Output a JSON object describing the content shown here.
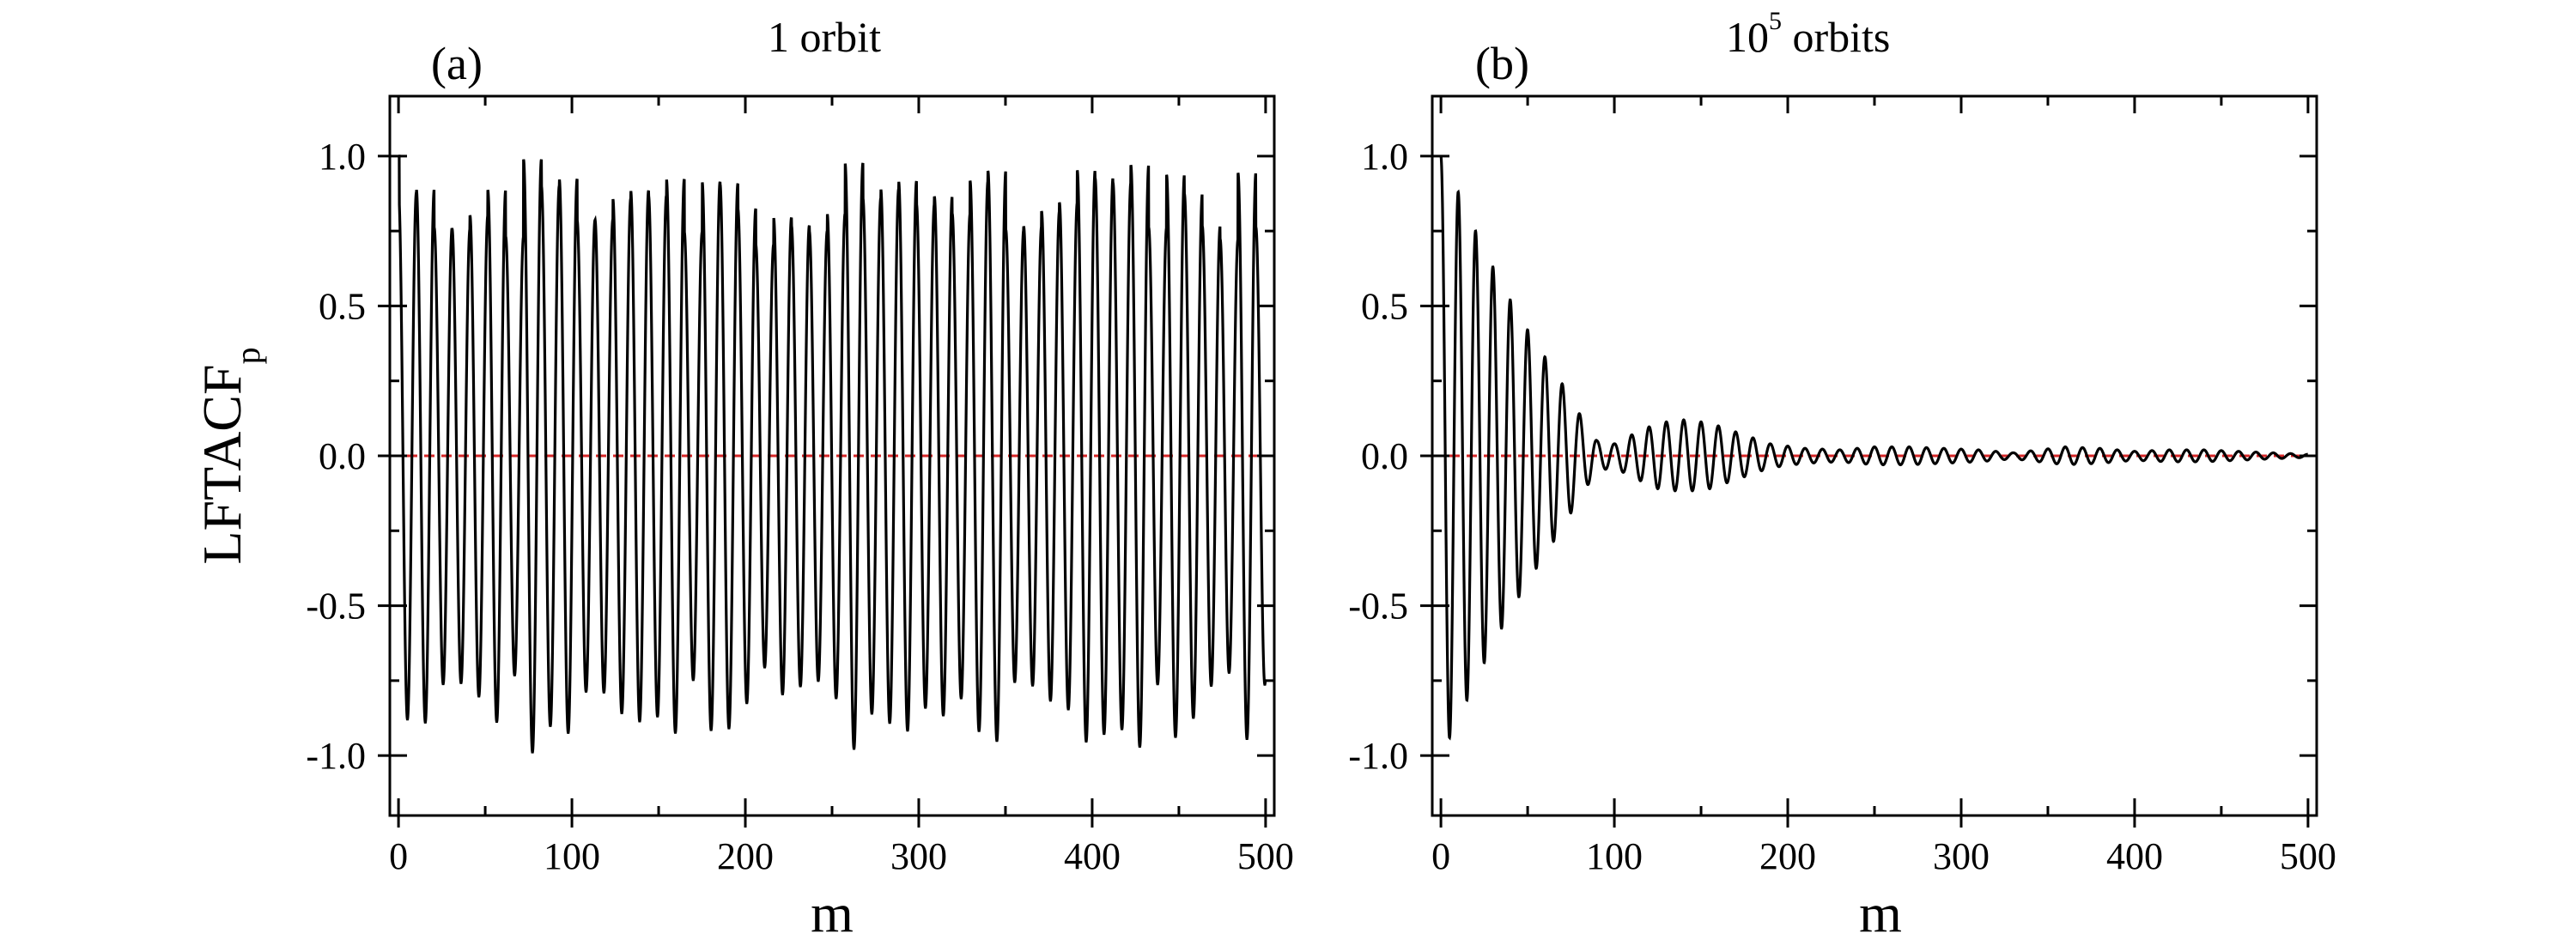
{
  "chart_data": [
    {
      "type": "line",
      "panel_label": "(a)",
      "title": "1 orbit",
      "xlabel": "m",
      "ylabel_main": "LFTACF",
      "ylabel_sub": "p",
      "xlim": [
        -5,
        505
      ],
      "ylim": [
        -1.2,
        1.2
      ],
      "xticks": [
        0,
        100,
        200,
        300,
        400,
        500
      ],
      "yticks": [
        -1.0,
        -0.5,
        0.0,
        0.5,
        1.0
      ],
      "xtick_labels": [
        "0",
        "100",
        "200",
        "300",
        "400",
        "500"
      ],
      "ytick_labels": [
        "-1.0",
        "-0.5",
        "0.0",
        "0.5",
        "1.0"
      ],
      "grid": false,
      "reference_line": {
        "y": 0.0,
        "color": "#d62728",
        "style": "dashed"
      },
      "series": [
        {
          "color": "#000000",
          "model": "non-decaying oscillation, period ~10.3 (about 49 cycles over m = 0-500), peak amplitude ~0.7-1.0",
          "period": 10.3,
          "x_range": [
            0,
            500
          ],
          "peaks_sample": [
            [
              0,
              1.0
            ],
            [
              10,
              0.75
            ],
            [
              21,
              0.86
            ],
            [
              31,
              0.9
            ],
            [
              41,
              0.97
            ],
            [
              52,
              0.7
            ],
            [
              62,
              0.95
            ],
            [
              72,
              0.83
            ],
            [
              124,
              0.99
            ],
            [
              175,
              0.98
            ],
            [
              226,
              0.98
            ],
            [
              278,
              0.99
            ],
            [
              329,
              0.99
            ],
            [
              381,
              0.99
            ],
            [
              432,
              0.99
            ],
            [
              483,
              0.95
            ],
            [
              496,
              0.7
            ]
          ],
          "troughs_sample": [
            [
              5,
              -0.87
            ],
            [
              15,
              -0.73
            ],
            [
              26,
              -0.98
            ],
            [
              36,
              -0.72
            ],
            [
              67,
              -0.96
            ],
            [
              155,
              -0.98
            ],
            [
              259,
              -0.99
            ],
            [
              365,
              -0.98
            ],
            [
              470,
              -0.96
            ],
            [
              490,
              -0.8
            ]
          ]
        }
      ]
    },
    {
      "type": "line",
      "panel_label": "(b)",
      "title_base": "10",
      "title_exp": "5",
      "title_rest": " orbits",
      "xlabel": "m",
      "xlim": [
        -5,
        505
      ],
      "ylim": [
        -1.2,
        1.2
      ],
      "xticks": [
        0,
        100,
        200,
        300,
        400,
        500
      ],
      "yticks": [
        -1.0,
        -0.5,
        0.0,
        0.5,
        1.0
      ],
      "xtick_labels": [
        "0",
        "100",
        "200",
        "300",
        "400",
        "500"
      ],
      "ytick_labels": [
        "-1.0",
        "-0.5",
        "0.0",
        "0.5",
        "1.0"
      ],
      "grid": false,
      "reference_line": {
        "y": 0.0,
        "color": "#d62728",
        "style": "dashed"
      },
      "series": [
        {
          "color": "#000000",
          "model": "decaying oscillation, period ~10, envelope decays from 1.0 to ~0 by m~90, revivals near m~140 and m~360",
          "period": 10.0,
          "x_range": [
            0,
            500
          ],
          "envelope": [
            [
              0,
              1.0
            ],
            [
              10,
              0.88
            ],
            [
              20,
              0.75
            ],
            [
              30,
              0.63
            ],
            [
              40,
              0.52
            ],
            [
              50,
              0.42
            ],
            [
              60,
              0.33
            ],
            [
              70,
              0.24
            ],
            [
              80,
              0.14
            ],
            [
              90,
              0.05
            ],
            [
              100,
              0.04
            ],
            [
              110,
              0.07
            ],
            [
              125,
              0.11
            ],
            [
              140,
              0.12
            ],
            [
              155,
              0.11
            ],
            [
              170,
              0.08
            ],
            [
              190,
              0.04
            ],
            [
              210,
              0.025
            ],
            [
              230,
              0.02
            ],
            [
              250,
              0.03
            ],
            [
              270,
              0.03
            ],
            [
              290,
              0.025
            ],
            [
              310,
              0.02
            ],
            [
              330,
              0.01
            ],
            [
              345,
              0.02
            ],
            [
              360,
              0.03
            ],
            [
              380,
              0.025
            ],
            [
              400,
              0.015
            ],
            [
              420,
              0.02
            ],
            [
              440,
              0.02
            ],
            [
              460,
              0.015
            ],
            [
              480,
              0.01
            ],
            [
              500,
              0.005
            ]
          ]
        }
      ]
    }
  ]
}
